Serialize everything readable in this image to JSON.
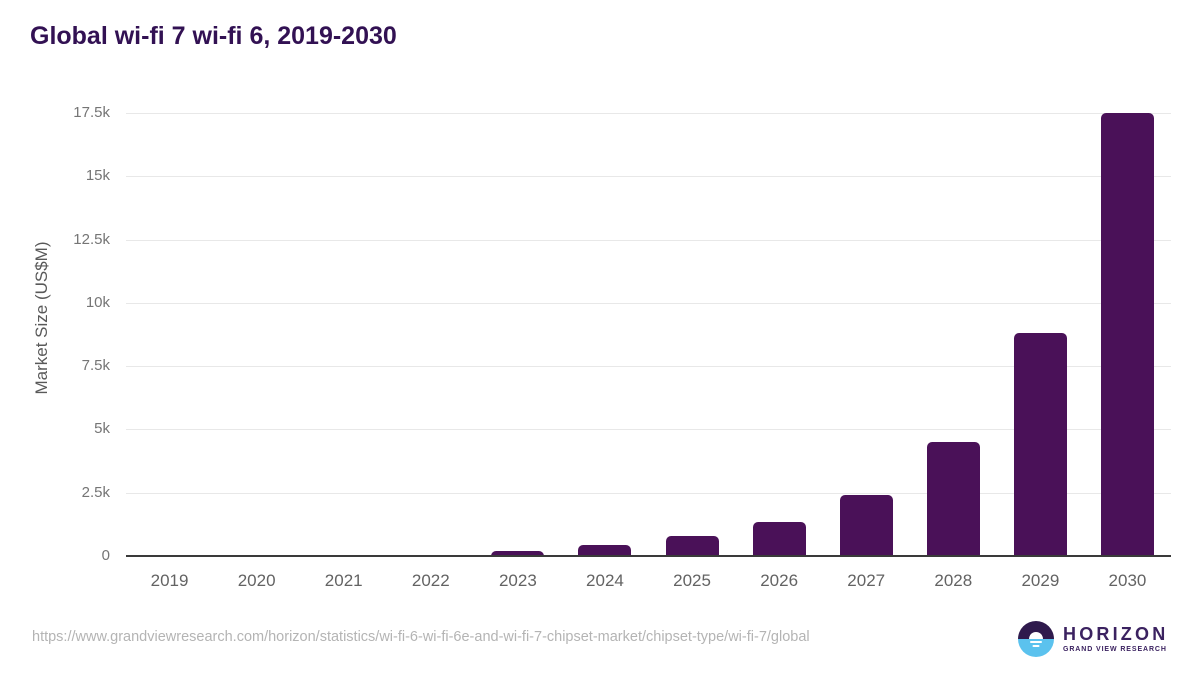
{
  "chart_data": {
    "type": "bar",
    "title": "Global wi-fi 7 wi-fi 6, 2019-2030",
    "xlabel": "",
    "ylabel": "Market Size (US$M)",
    "categories": [
      "2019",
      "2020",
      "2021",
      "2022",
      "2023",
      "2024",
      "2025",
      "2026",
      "2027",
      "2028",
      "2029",
      "2030"
    ],
    "values": [
      0,
      0,
      0,
      0,
      200,
      430,
      800,
      1350,
      2400,
      4500,
      8800,
      17500
    ],
    "ylim": [
      0,
      17500
    ],
    "yticks": [
      0,
      2500,
      5000,
      7500,
      10000,
      12500,
      15000,
      17500
    ],
    "ytick_labels": [
      "0",
      "2.5k",
      "5k",
      "7.5k",
      "10k",
      "12.5k",
      "15k",
      "17.5k"
    ],
    "grid": true,
    "legend": "none",
    "bar_color": "#4a1158"
  },
  "colors": {
    "title": "#321153",
    "bar": "#4a1158",
    "gridline": "#e8e8e8",
    "axis_line": "#3a3a3a",
    "ytick_text": "#757575",
    "xlabel_text": "#636363",
    "url_text": "#b4b4b4",
    "logo_purple": "#3b2260",
    "logo_icon_top": "#2f1a4d",
    "logo_icon_blue": "#5bc2ee"
  },
  "footer": {
    "source_url": "https://www.grandviewresearch.com/horizon/statistics/wi-fi-6-wi-fi-6e-and-wi-fi-7-chipset-market/chipset-type/wi-fi-7/global",
    "logo": {
      "title": "HORIZON",
      "subtitle": "GRAND VIEW RESEARCH"
    }
  }
}
